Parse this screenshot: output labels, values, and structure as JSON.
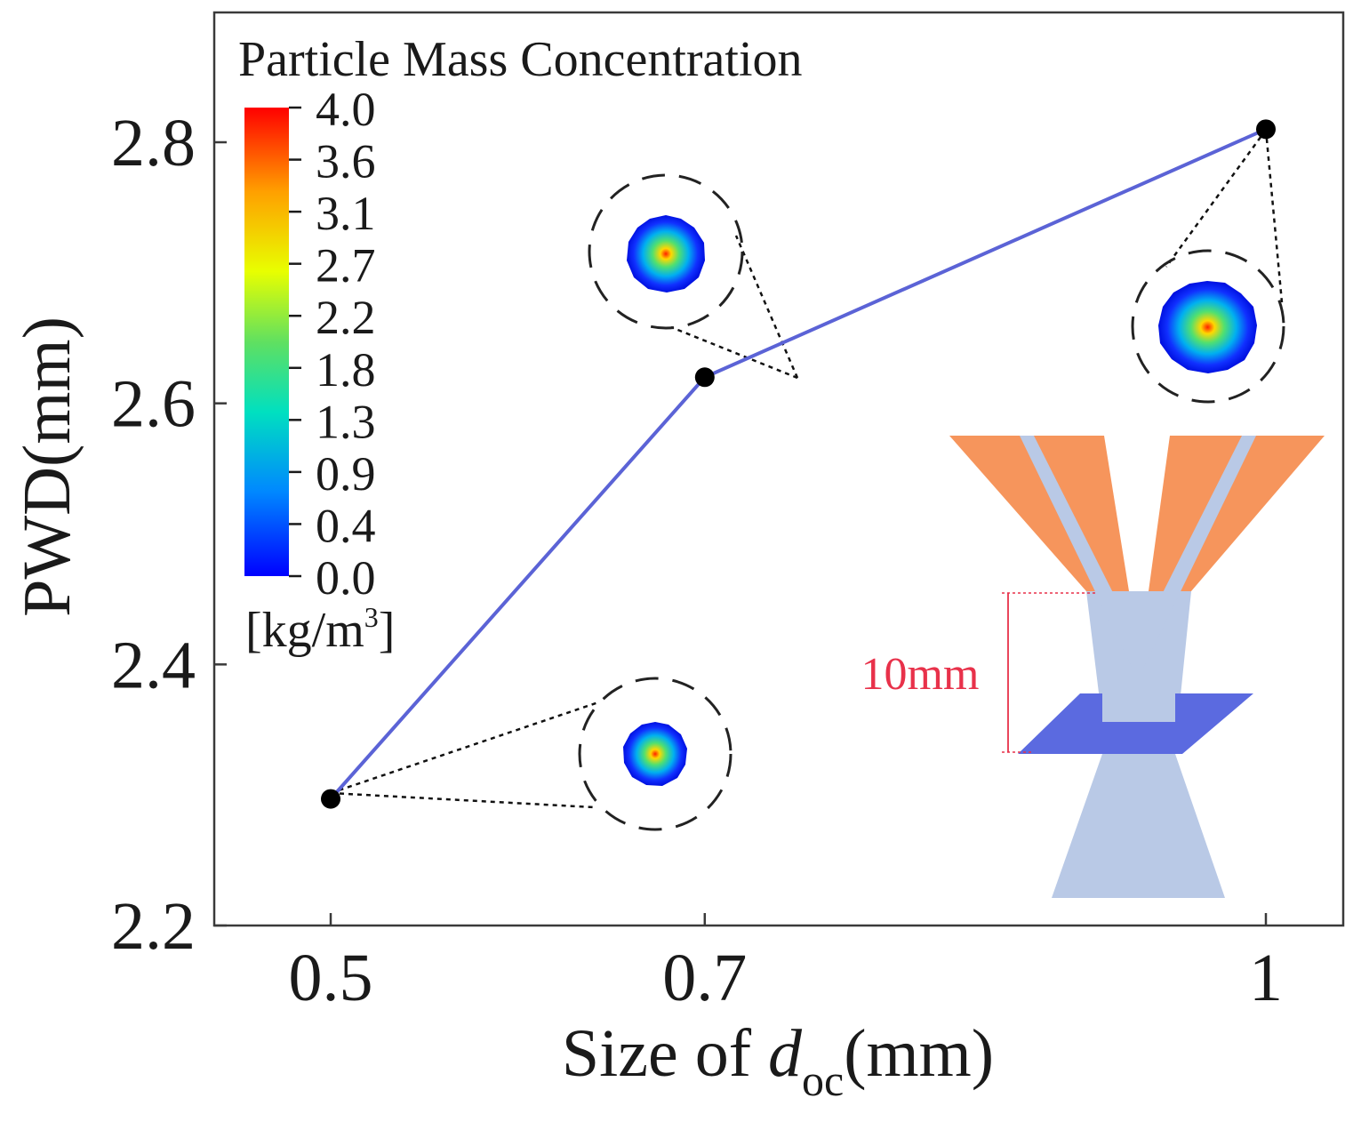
{
  "chart_data": {
    "type": "line",
    "xlabel_prefix": "Size of ",
    "xlabel_var": "d",
    "xlabel_sub": "oc",
    "xlabel_unit": "(mm)",
    "ylabel": "PWD(mm)",
    "ylim": [
      2.2,
      2.9
    ],
    "x_ticks": [
      {
        "value": 0.5,
        "label": "0.5"
      },
      {
        "value": 0.7,
        "label": "0.7"
      },
      {
        "value": 1.0,
        "label": "1"
      }
    ],
    "y_ticks": [
      {
        "value": 2.2,
        "label": "2.2"
      },
      {
        "value": 2.4,
        "label": "2.4"
      },
      {
        "value": 2.6,
        "label": "2.6"
      },
      {
        "value": 2.8,
        "label": "2.8"
      }
    ],
    "series": [
      {
        "name": "PWD",
        "color": "#5b63d6",
        "points": [
          {
            "x": 0.5,
            "y": 2.297
          },
          {
            "x": 0.7,
            "y": 2.62
          },
          {
            "x": 1.0,
            "y": 2.81
          }
        ]
      }
    ],
    "colorbar": {
      "title": "Particle Mass Concentration",
      "unit": "[kg/m",
      "unit_sup": "3",
      "unit_close": "]",
      "min": 0.0,
      "max": 4.0,
      "labels": [
        "4.0",
        "3.6",
        "3.1",
        "2.7",
        "2.2",
        "1.8",
        "1.3",
        "0.9",
        "0.4",
        "0.0"
      ]
    },
    "schematic": {
      "annotation": "10mm",
      "annotation_color": "#e8314a",
      "nozzle_color": "#f6955c",
      "powder_color": "#b9c9e6",
      "substrate_color": "#5b6ae0"
    }
  }
}
